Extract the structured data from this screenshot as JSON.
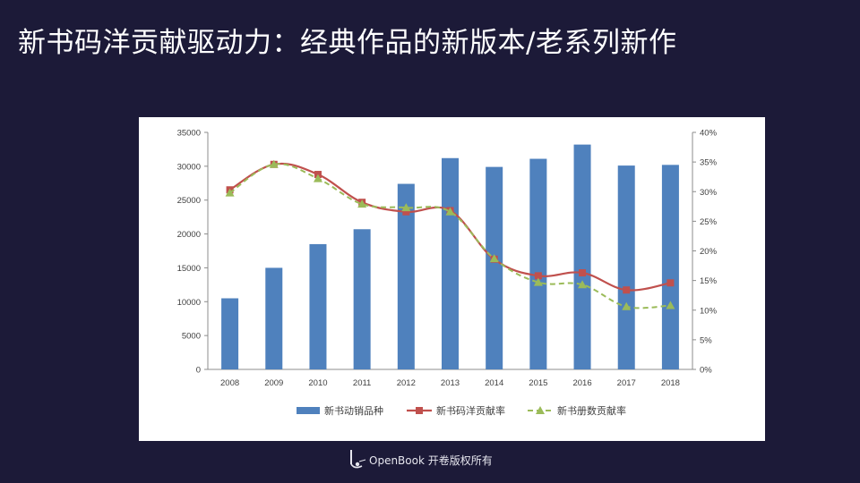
{
  "slide": {
    "title": "新书码洋贡献驱动力：经典作品的新版本/老系列新作"
  },
  "footer": {
    "brand_text": "OpenBook 开卷版权所有",
    "logo_icon": "openbook-logo-icon"
  },
  "colors": {
    "background": "#1c1a38",
    "bar": "#4f81bd",
    "line_red": "#c0504d",
    "line_green": "#9bbb59"
  },
  "chart_data": {
    "type": "bar",
    "categories": [
      "2008",
      "2009",
      "2010",
      "2011",
      "2012",
      "2013",
      "2014",
      "2015",
      "2016",
      "2017",
      "2018"
    ],
    "y_left": {
      "min": 0,
      "max": 35000,
      "ticks": [
        "0",
        "5000",
        "10000",
        "15000",
        "20000",
        "25000",
        "30000",
        "35000"
      ]
    },
    "y_right": {
      "min": 0,
      "max": 40,
      "ticks": [
        "0%",
        "5%",
        "10%",
        "15%",
        "20%",
        "25%",
        "30%",
        "35%",
        "40%"
      ]
    },
    "series": [
      {
        "name": "新书动销品种",
        "kind": "bar",
        "axis": "left",
        "values": [
          10500,
          15000,
          18500,
          20700,
          27400,
          31200,
          29900,
          31100,
          33200,
          30100,
          30200
        ]
      },
      {
        "name": "新书码洋贡献率",
        "kind": "line",
        "marker": "square",
        "axis": "right",
        "values": [
          30.3,
          34.6,
          32.9,
          28.2,
          26.6,
          26.8,
          18.6,
          15.8,
          16.3,
          13.4,
          14.6
        ]
      },
      {
        "name": "新书册数贡献率",
        "kind": "line",
        "dashed": true,
        "marker": "triangle",
        "axis": "right",
        "values": [
          29.8,
          34.6,
          32.2,
          27.9,
          27.3,
          26.6,
          18.7,
          14.7,
          14.3,
          10.6,
          10.8
        ]
      }
    ],
    "legend_position": "bottom",
    "grid": false
  }
}
